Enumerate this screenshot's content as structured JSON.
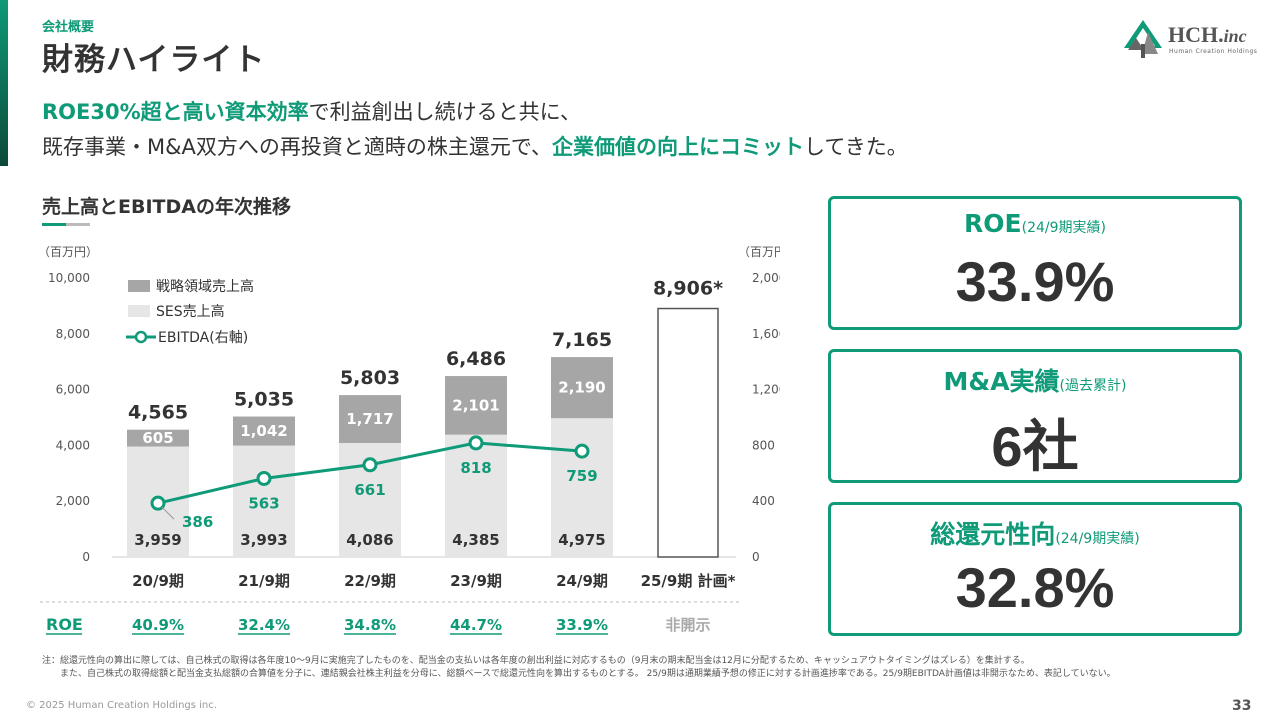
{
  "header": {
    "section_label": "会社概要",
    "title": "財務ハイライト",
    "logo_text": "HCH.",
    "logo_suffix": "inc",
    "logo_sub": "Human Creation Holdings"
  },
  "headline": {
    "line1_highlight": "ROE30%超と高い資本効率",
    "line1_rest": "で利益創出し続けると共に、",
    "line2_prefix": "既存事業・M&A双方への再投資と適時の株主還元で、",
    "line2_highlight": "企業価値の向上にコミット",
    "line2_suffix": "してきた。"
  },
  "chart_title": "売上高とEBITDAの年次推移",
  "chart_data": {
    "type": "bar",
    "title": "売上高とEBITDAの年次推移",
    "left_unit": "（百万円）",
    "right_unit": "（百万円）",
    "ylim": [
      0,
      10000
    ],
    "y2lim": [
      0,
      2000
    ],
    "left_ticks": [
      "10,000",
      "8,000",
      "6,000",
      "4,000",
      "2,000",
      "0"
    ],
    "right_ticks": [
      "2,000",
      "1,600",
      "1,200",
      "800",
      "400",
      "0"
    ],
    "left_tick_values": [
      10000,
      8000,
      6000,
      4000,
      2000,
      0
    ],
    "right_tick_values": [
      2000,
      1600,
      1200,
      800,
      400,
      0
    ],
    "categories": [
      "20/9期",
      "21/9期",
      "22/9期",
      "23/9期",
      "24/9期",
      "25/9期 計画*"
    ],
    "series": [
      {
        "name": "SES売上高",
        "values": [
          3959,
          3993,
          4086,
          4385,
          4975,
          null
        ],
        "labels": [
          "3,959",
          "3,993",
          "4,086",
          "4,385",
          "4,975",
          ""
        ],
        "color": "#e6e6e6"
      },
      {
        "name": "戦略領域売上高",
        "values": [
          605,
          1042,
          1717,
          2101,
          2190,
          null
        ],
        "labels": [
          "605",
          "1,042",
          "1,717",
          "2,101",
          "2,190",
          ""
        ],
        "color": "#a6a6a6"
      },
      {
        "name": "EBITDA(右軸)",
        "values": [
          386,
          563,
          661,
          818,
          759,
          null
        ],
        "labels": [
          "386",
          "563",
          "661",
          "818",
          "759",
          ""
        ],
        "color": "#0f9a78"
      }
    ],
    "totals": [
      4565,
      5035,
      5803,
      6486,
      7165,
      8906
    ],
    "total_labels": [
      "4,565",
      "5,035",
      "5,803",
      "6,486",
      "7,165",
      "8,906*"
    ],
    "legend": [
      "戦略領域売上高",
      "SES売上高",
      "EBITDA(右軸)"
    ],
    "roe_label": "ROE",
    "roe": [
      "40.9%",
      "32.4%",
      "34.8%",
      "44.7%",
      "33.9%",
      "非開示"
    ]
  },
  "cards": [
    {
      "label": "ROE",
      "sublabel": "(24/9期実績)",
      "value": "33.9%"
    },
    {
      "label": "M&A実績",
      "sublabel": "(過去累計)",
      "value": "6社"
    },
    {
      "label": "総還元性向",
      "sublabel": "(24/9期実績)",
      "value": "32.8%"
    }
  ],
  "notes": [
    "注：総還元性向の算出に際しては、自己株式の取得は各年度10〜9月に実施完了したものを、配当金の支払いは各年度の創出利益に対応するもの（9月末の期末配当金は12月に分配するため、キャッシュアウトタイミングはズレる）を集計する。",
    "　　また、自己株式の取得総額と配当金支払総額の合算値を分子に、連結親会社株主利益を分母に、総額ベースで総還元性向を算出するものとする。 25/9期は通期業績予想の修正に対する計画進捗率である。25/9期EBITDA計画値は非開示なため、表記していない。"
  ],
  "footer": {
    "copyright": "© 2025 Human Creation Holdings inc.",
    "page": "33"
  },
  "colors": {
    "accent": "#0f9a78",
    "strategic": "#a6a6a6",
    "ses": "#e6e6e6",
    "text": "#333333"
  }
}
